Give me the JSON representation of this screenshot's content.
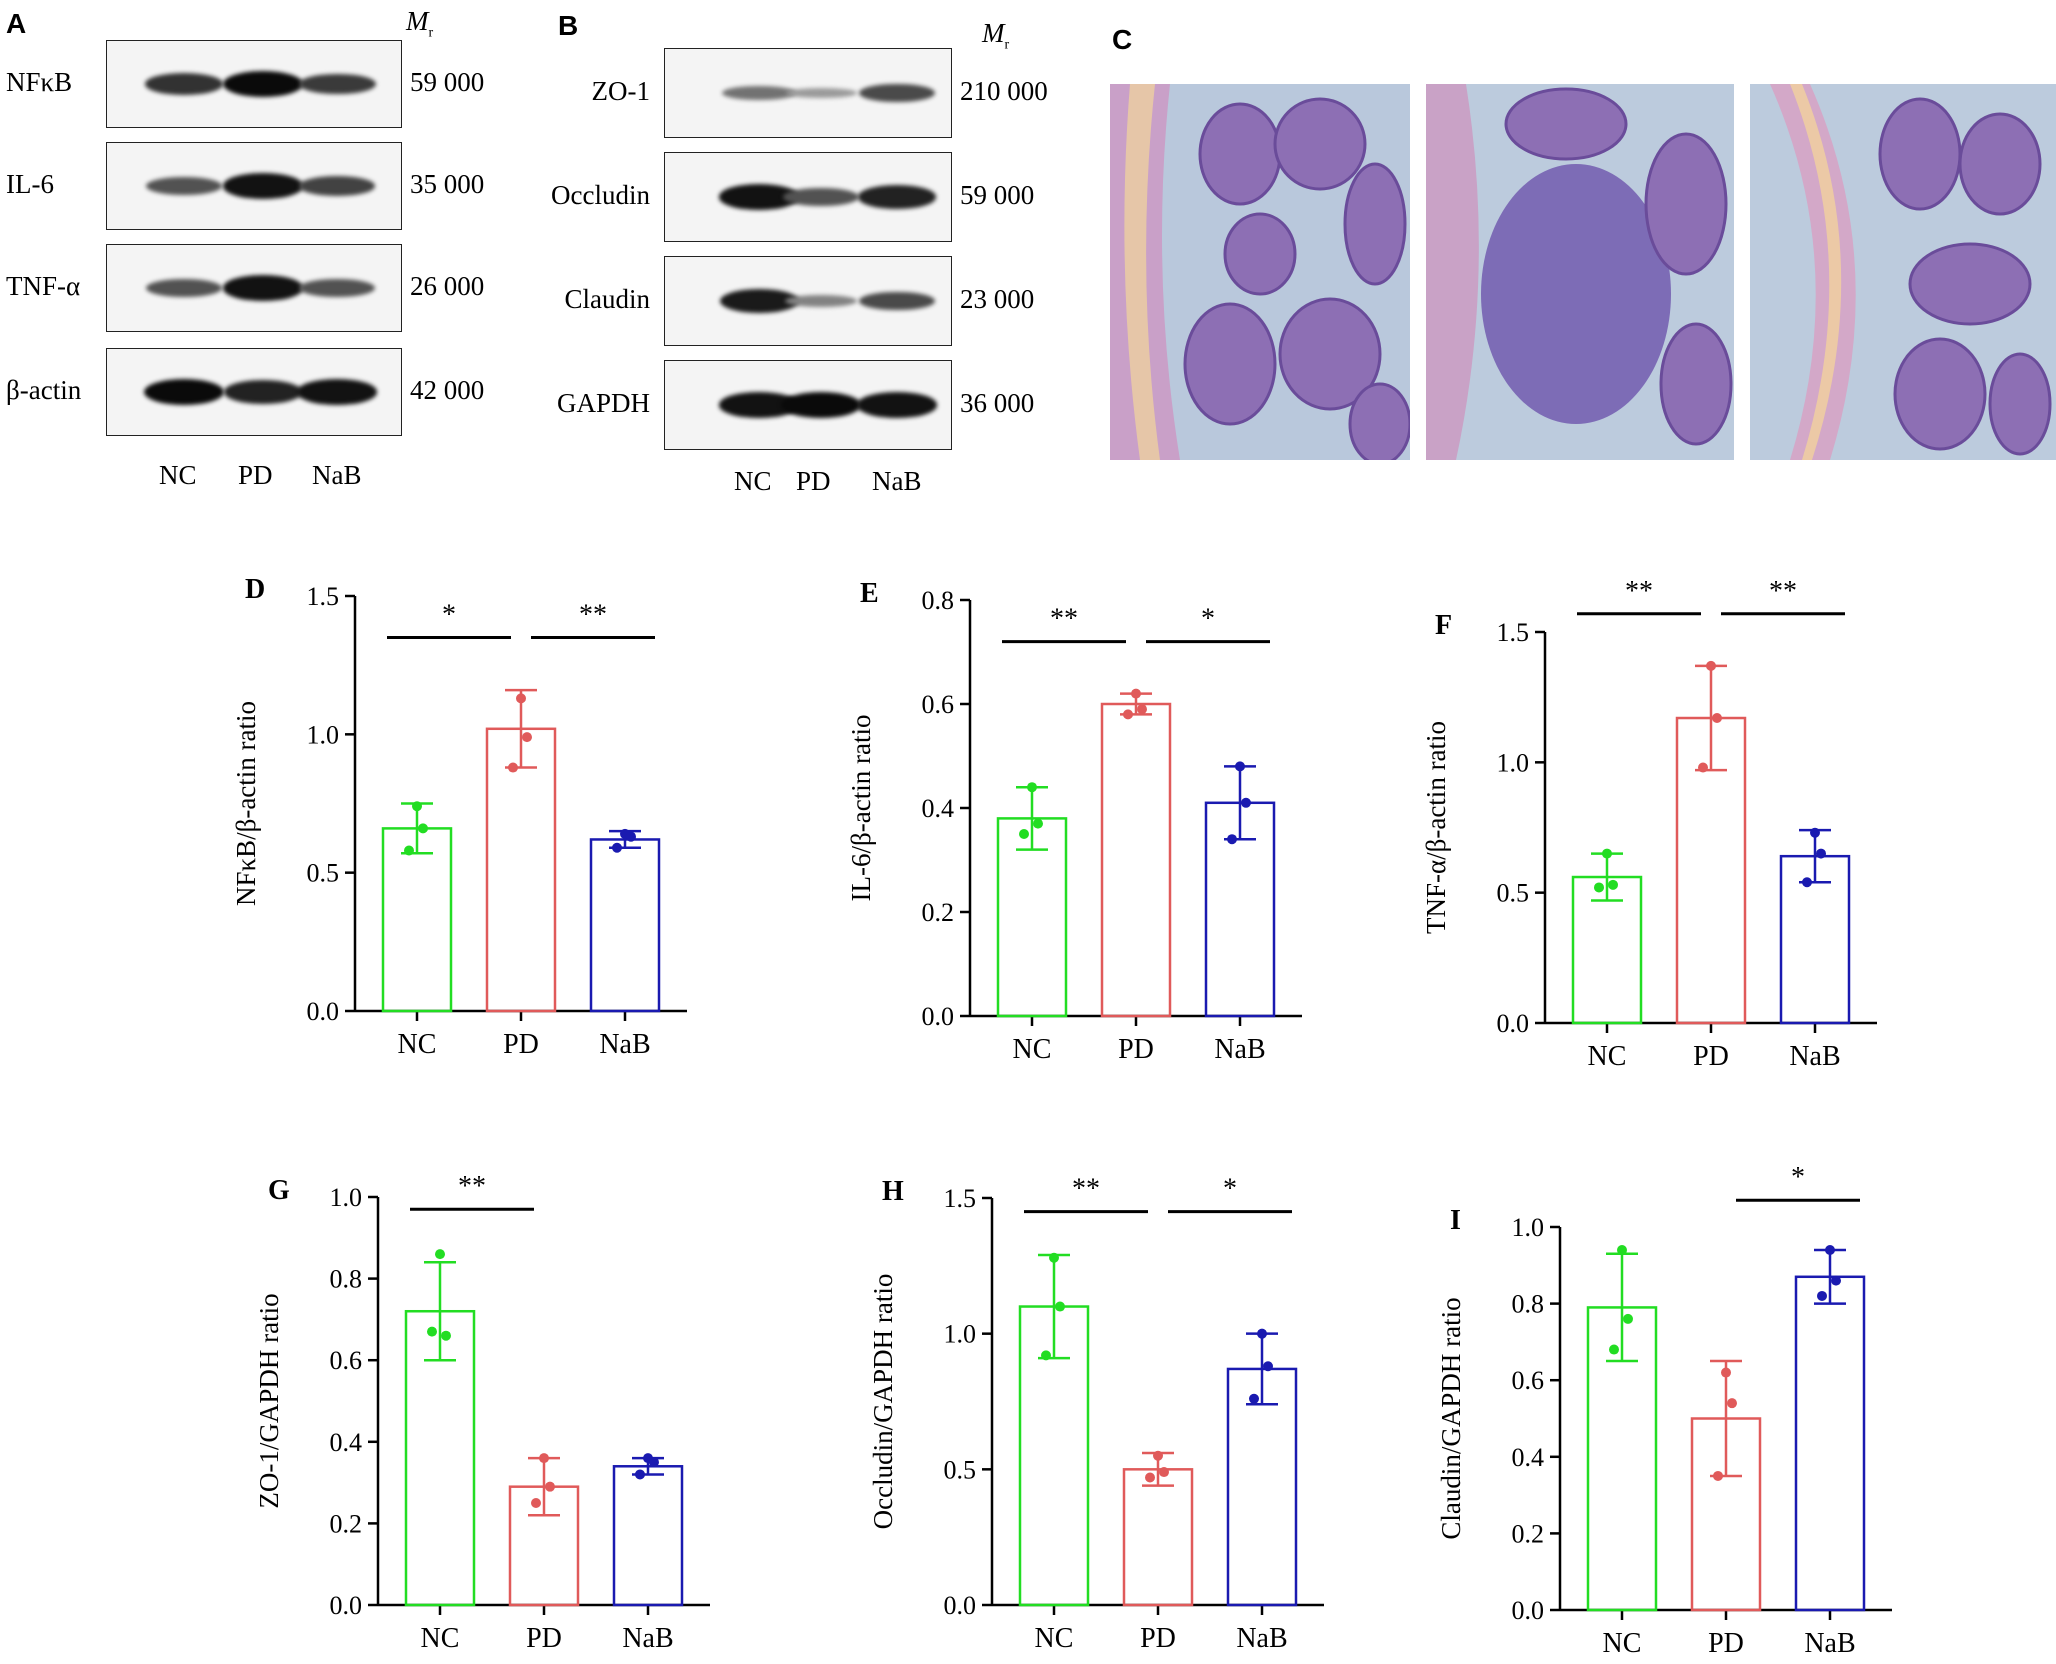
{
  "panels": {
    "A": {
      "letter": "A",
      "mr_label": "M",
      "mr_sub": "r",
      "rows": [
        {
          "name": "NFκB",
          "mw": "59 000",
          "bands": [
            0.75,
            1.0,
            0.7
          ]
        },
        {
          "name": "IL-6",
          "mw": "35 000",
          "bands": [
            0.55,
            0.95,
            0.65
          ]
        },
        {
          "name": "TNF-α",
          "mw": "26 000",
          "bands": [
            0.55,
            0.95,
            0.55
          ]
        },
        {
          "name": "β-actin",
          "mw": "42 000",
          "bands": [
            1.0,
            0.85,
            0.95
          ]
        }
      ],
      "lanes": [
        "NC",
        "PD",
        "NaB"
      ]
    },
    "B": {
      "letter": "B",
      "mr_label": "M",
      "mr_sub": "r",
      "rows": [
        {
          "name": "ZO-1",
          "mw": "210 000",
          "bands": [
            0.35,
            0.1,
            0.6
          ]
        },
        {
          "name": "Occludin",
          "mw": "59 000",
          "bands": [
            0.95,
            0.55,
            0.85
          ]
        },
        {
          "name": "Claudin",
          "mw": "23 000",
          "bands": [
            0.9,
            0.25,
            0.6
          ]
        },
        {
          "name": "GAPDH",
          "mw": "36 000",
          "bands": [
            0.95,
            1.0,
            0.95
          ]
        }
      ],
      "lanes": [
        "NC",
        "PD",
        "NaB"
      ]
    },
    "C": {
      "letter": "C"
    }
  },
  "colors": {
    "NC": "#22dd22",
    "PD": "#e05a5a",
    "NaB": "#1a1ab0"
  },
  "chart_data": [
    {
      "id": "D",
      "type": "bar",
      "categories": [
        "NC",
        "PD",
        "NaB"
      ],
      "ylabel": "NFκB/β-actin ratio",
      "ylim": [
        0,
        1.5
      ],
      "ticks": [
        0.0,
        0.5,
        1.0,
        1.5
      ],
      "tick_labels": [
        "0.0",
        "0.5",
        "1.0",
        "1.5"
      ],
      "values": [
        0.66,
        1.02,
        0.62
      ],
      "sd": [
        0.09,
        0.14,
        0.03
      ],
      "points": [
        [
          0.74,
          0.66,
          0.58
        ],
        [
          1.13,
          0.99,
          0.88
        ],
        [
          0.64,
          0.63,
          0.59
        ]
      ],
      "sig": [
        {
          "from": 0,
          "to": 1,
          "label": "*",
          "level": 1.35
        },
        {
          "from": 1,
          "to": 2,
          "label": "**",
          "level": 1.35
        }
      ]
    },
    {
      "id": "E",
      "type": "bar",
      "categories": [
        "NC",
        "PD",
        "NaB"
      ],
      "ylabel": "IL-6/β-actin ratio",
      "ylim": [
        0,
        0.8
      ],
      "ticks": [
        0.0,
        0.2,
        0.4,
        0.6,
        0.8
      ],
      "tick_labels": [
        "0.0",
        "0.2",
        "0.4",
        "0.6",
        "0.8"
      ],
      "values": [
        0.38,
        0.6,
        0.41
      ],
      "sd": [
        0.06,
        0.02,
        0.07
      ],
      "points": [
        [
          0.44,
          0.37,
          0.35
        ],
        [
          0.62,
          0.59,
          0.58
        ],
        [
          0.48,
          0.41,
          0.34
        ]
      ],
      "sig": [
        {
          "from": 0,
          "to": 1,
          "label": "**",
          "level": 0.72
        },
        {
          "from": 1,
          "to": 2,
          "label": "*",
          "level": 0.72
        }
      ]
    },
    {
      "id": "F",
      "type": "bar",
      "categories": [
        "NC",
        "PD",
        "NaB"
      ],
      "ylabel": "TNF-α/β-actin ratio",
      "ylim": [
        0,
        1.5
      ],
      "ticks": [
        0.0,
        0.5,
        1.0,
        1.5
      ],
      "tick_labels": [
        "0.0",
        "0.5",
        "1.0",
        "1.5"
      ],
      "values": [
        0.56,
        1.17,
        0.64
      ],
      "sd": [
        0.09,
        0.2,
        0.1
      ],
      "points": [
        [
          0.65,
          0.53,
          0.52
        ],
        [
          1.37,
          1.17,
          0.98
        ],
        [
          0.73,
          0.65,
          0.54
        ]
      ],
      "sig": [
        {
          "from": 0,
          "to": 1,
          "label": "**",
          "level": 1.57
        },
        {
          "from": 1,
          "to": 2,
          "label": "**",
          "level": 1.57
        }
      ]
    },
    {
      "id": "G",
      "type": "bar",
      "categories": [
        "NC",
        "PD",
        "NaB"
      ],
      "ylabel": "ZO-1/GAPDH ratio",
      "ylim": [
        0,
        1.0
      ],
      "ticks": [
        0.0,
        0.2,
        0.4,
        0.6,
        0.8,
        1.0
      ],
      "tick_labels": [
        "0.0",
        "0.2",
        "0.4",
        "0.6",
        "0.8",
        "1.0"
      ],
      "values": [
        0.72,
        0.29,
        0.34
      ],
      "sd": [
        0.12,
        0.07,
        0.02
      ],
      "points": [
        [
          0.86,
          0.66,
          0.67
        ],
        [
          0.36,
          0.29,
          0.25
        ],
        [
          0.36,
          0.35,
          0.32
        ]
      ],
      "sig": [
        {
          "from": 0,
          "to": 1,
          "label": "**",
          "level": 0.97
        }
      ]
    },
    {
      "id": "H",
      "type": "bar",
      "categories": [
        "NC",
        "PD",
        "NaB"
      ],
      "ylabel": "Occludin/GAPDH ratio",
      "ylim": [
        0,
        1.5
      ],
      "ticks": [
        0.0,
        0.5,
        1.0,
        1.5
      ],
      "tick_labels": [
        "0.0",
        "0.5",
        "1.0",
        "1.5"
      ],
      "values": [
        1.1,
        0.5,
        0.87
      ],
      "sd": [
        0.19,
        0.06,
        0.13
      ],
      "points": [
        [
          1.28,
          1.1,
          0.92
        ],
        [
          0.55,
          0.49,
          0.47
        ],
        [
          1.0,
          0.88,
          0.76
        ]
      ],
      "sig": [
        {
          "from": 0,
          "to": 1,
          "label": "**",
          "level": 1.45
        },
        {
          "from": 1,
          "to": 2,
          "label": "*",
          "level": 1.45
        }
      ]
    },
    {
      "id": "I",
      "type": "bar",
      "categories": [
        "NC",
        "PD",
        "NaB"
      ],
      "ylabel": "Claudin/GAPDH ratio",
      "ylim": [
        0,
        1.0
      ],
      "ticks": [
        0.0,
        0.2,
        0.4,
        0.6,
        0.8,
        1.0
      ],
      "tick_labels": [
        "0.0",
        "0.2",
        "0.4",
        "0.6",
        "0.8",
        "1.0"
      ],
      "values": [
        0.79,
        0.5,
        0.87
      ],
      "sd": [
        0.14,
        0.15,
        0.07
      ],
      "points": [
        [
          0.94,
          0.76,
          0.68
        ],
        [
          0.62,
          0.54,
          0.35
        ],
        [
          0.94,
          0.86,
          0.82
        ]
      ],
      "sig": [
        {
          "from": 1,
          "to": 2,
          "label": "*",
          "level": 1.07
        }
      ]
    }
  ]
}
